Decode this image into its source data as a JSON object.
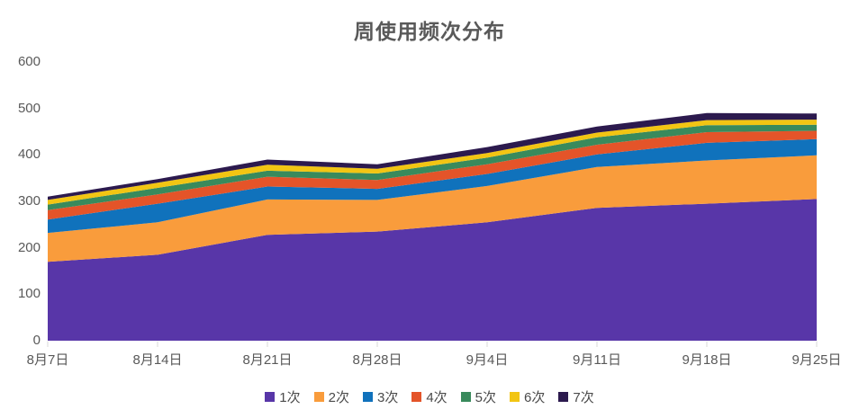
{
  "chart_data": {
    "type": "area",
    "stacked": true,
    "title": "周使用频次分布",
    "xlabel": "",
    "ylabel": "",
    "ylim": [
      0,
      600
    ],
    "y_ticks": [
      0,
      100,
      200,
      300,
      400,
      500,
      600
    ],
    "grid": false,
    "legend_position": "bottom",
    "categories": [
      "8月7日",
      "8月14日",
      "8月21日",
      "8月28日",
      "9月4日",
      "9月11日",
      "9月18日",
      "9月25日"
    ],
    "series": [
      {
        "name": "1次",
        "color": "#5836a8",
        "values": [
          170,
          185,
          228,
          235,
          255,
          286,
          295,
          305
        ]
      },
      {
        "name": "2次",
        "color": "#f99c3c",
        "values": [
          62,
          70,
          76,
          68,
          78,
          88,
          93,
          94
        ]
      },
      {
        "name": "3次",
        "color": "#1072bc",
        "values": [
          29,
          40,
          28,
          24,
          26,
          27,
          38,
          35
        ]
      },
      {
        "name": "4次",
        "color": "#e45429",
        "values": [
          20,
          20,
          21,
          19,
          21,
          21,
          23,
          18
        ]
      },
      {
        "name": "5次",
        "color": "#398a5c",
        "values": [
          12,
          14,
          13,
          14,
          14,
          16,
          15,
          13
        ]
      },
      {
        "name": "6次",
        "color": "#f2c513",
        "values": [
          10,
          11,
          13,
          10,
          10,
          10,
          11,
          11
        ]
      },
      {
        "name": "7次",
        "color": "#2c1a4e",
        "values": [
          7,
          8,
          11,
          10,
          13,
          13,
          15,
          13
        ]
      }
    ],
    "axis_tick_color": "#d9d9d9",
    "text_color": "#595959"
  }
}
